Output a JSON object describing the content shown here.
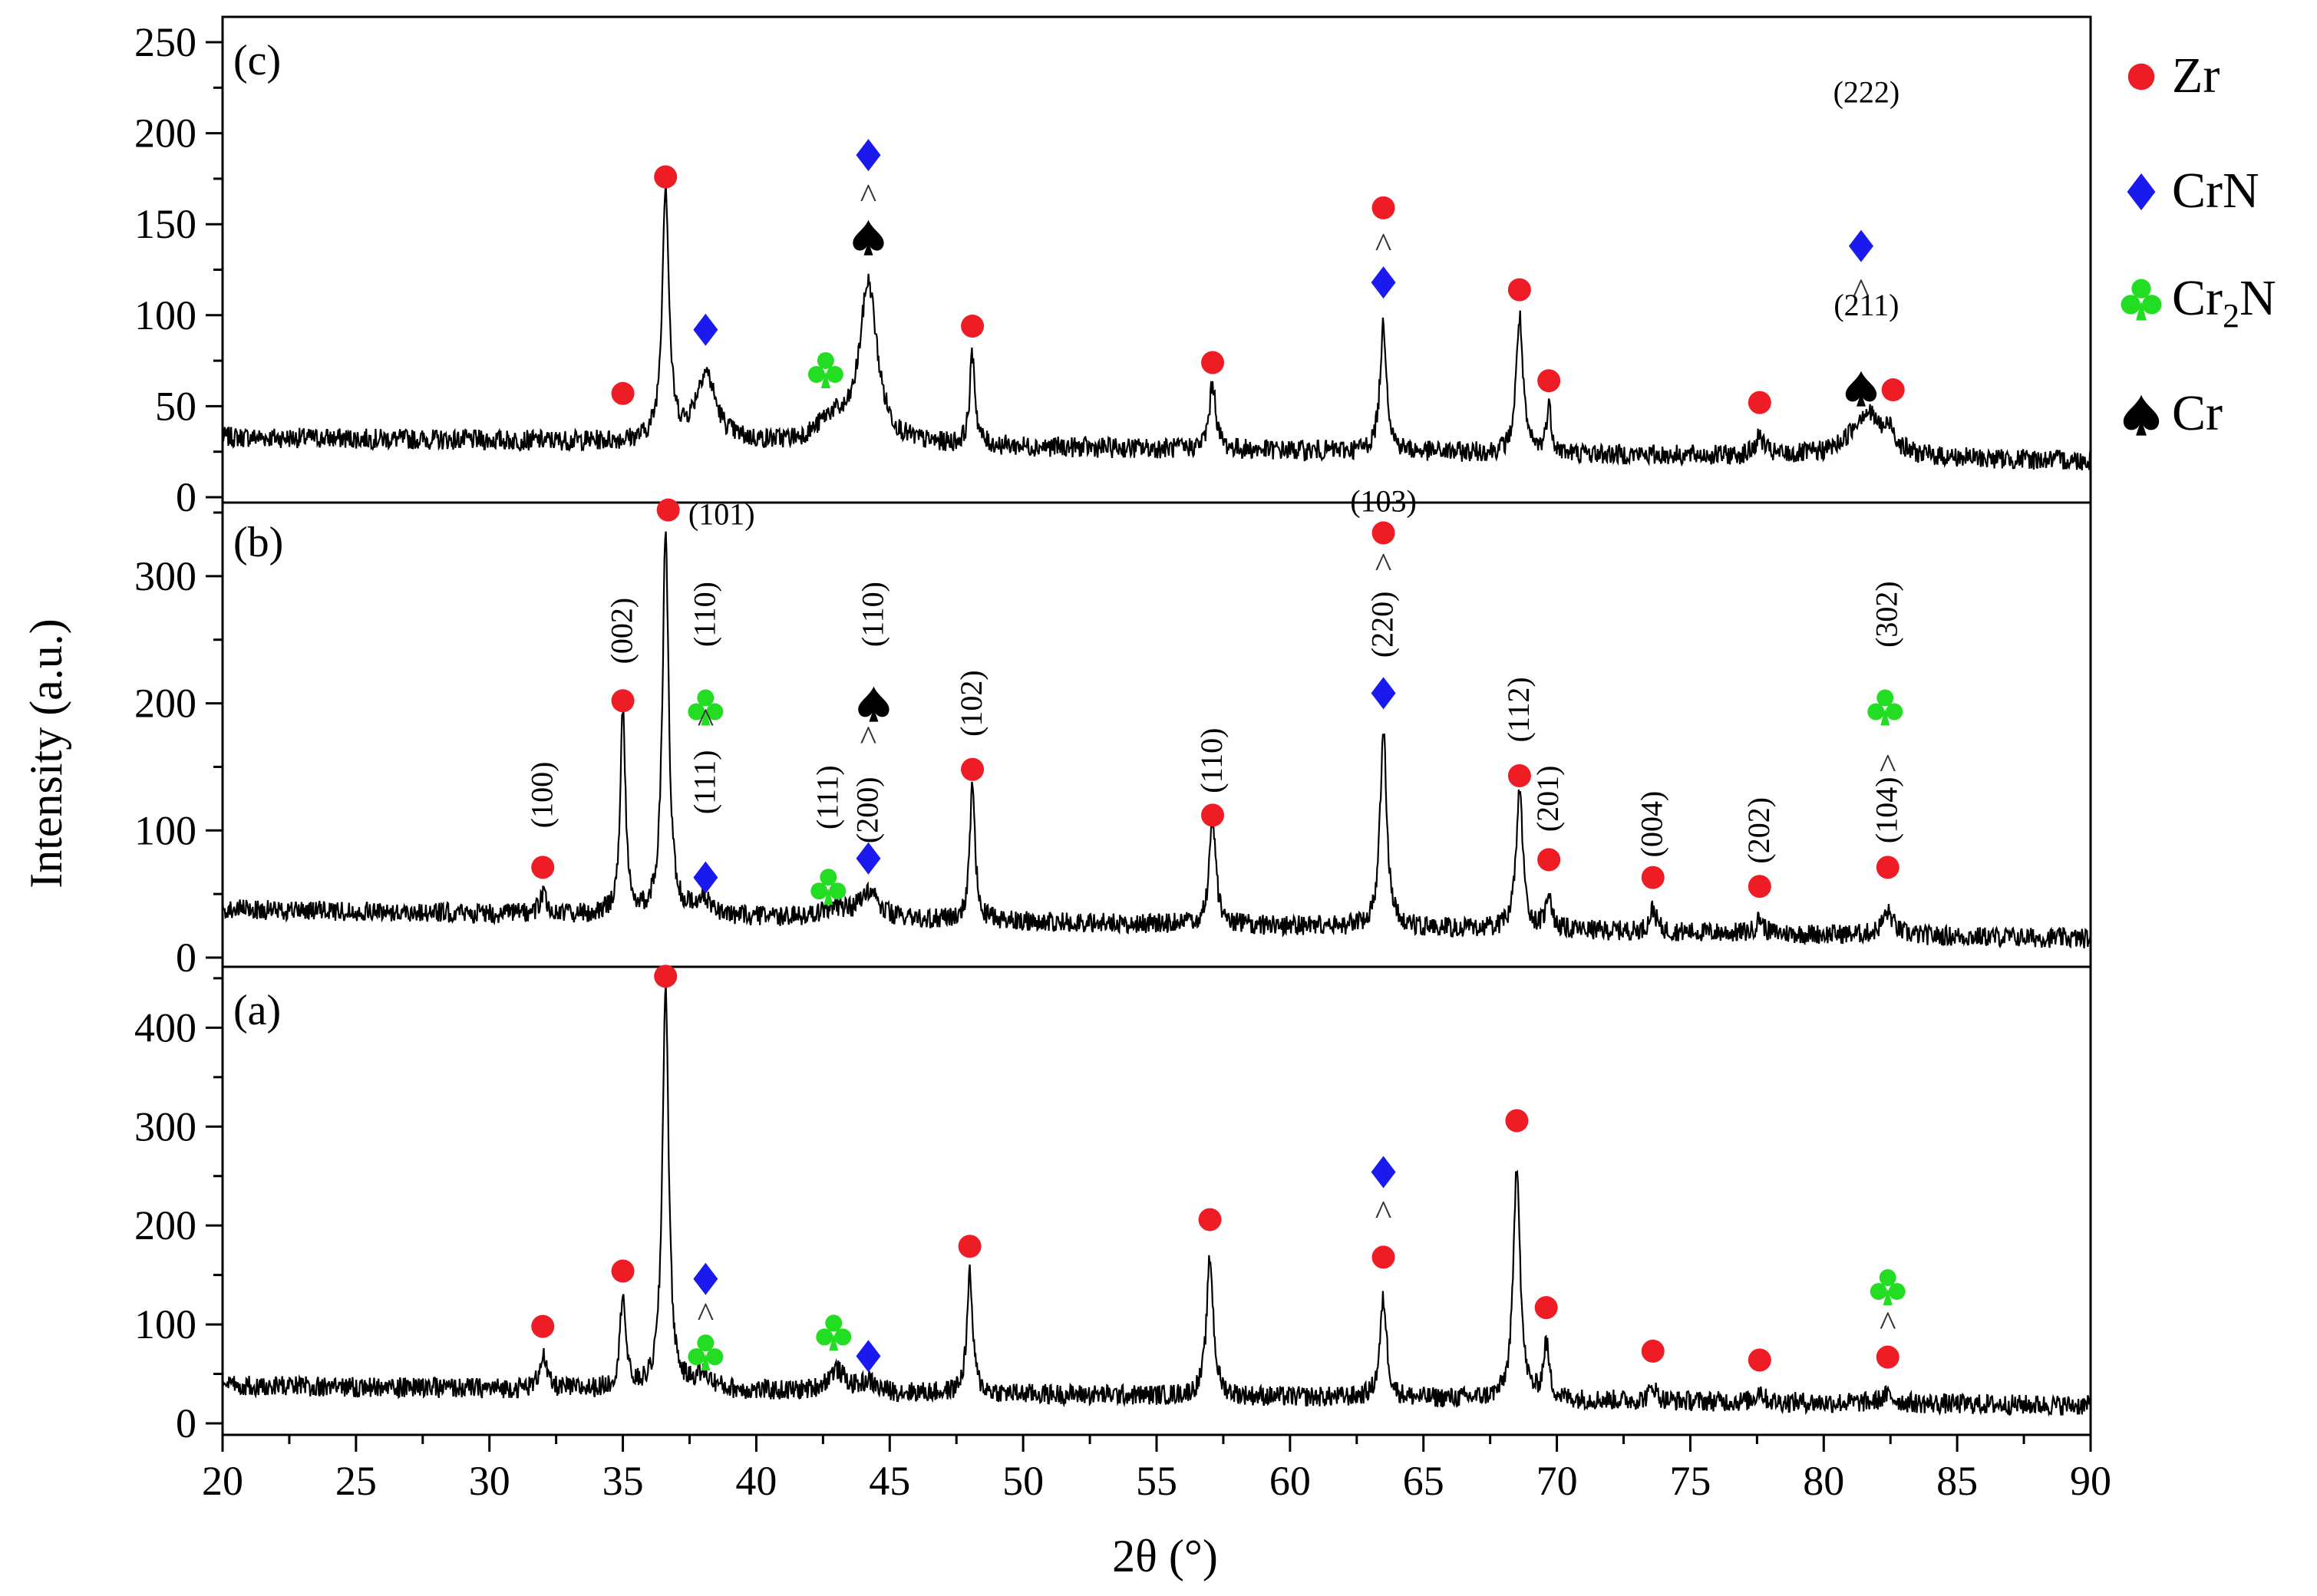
{
  "chart_data": {
    "type": "line",
    "title": "",
    "xlabel": "2θ (°)",
    "ylabel": "Intensity (a.u.)",
    "xlim": [
      20,
      90
    ],
    "xticks": [
      "20",
      "25",
      "30",
      "35",
      "40",
      "45",
      "50",
      "55",
      "60",
      "65",
      "70",
      "75",
      "80",
      "85",
      "90"
    ],
    "panels": [
      {
        "id": "c",
        "label": "(c)",
        "ylim": [
          0,
          250
        ],
        "yticks": [
          "0",
          "50",
          "100",
          "150",
          "200",
          "250"
        ],
        "baseline": {
          "start": 33,
          "end": 20
        },
        "peaks": [
          [
            36.6,
            140,
            0.15
          ],
          [
            38.1,
            38,
            0.45
          ],
          [
            42.8,
            12,
            0.6
          ],
          [
            44.2,
            88,
            0.4
          ],
          [
            48.1,
            50,
            0.12
          ],
          [
            57.1,
            36,
            0.15
          ],
          [
            63.5,
            70,
            0.15
          ],
          [
            68.6,
            75,
            0.15
          ],
          [
            69.7,
            25,
            0.12
          ],
          [
            77.6,
            10,
            0.2
          ],
          [
            81.6,
            25,
            0.7
          ],
          [
            82.5,
            10,
            0.2
          ]
        ],
        "markers": [
          {
            "x": 35.0,
            "y": 57,
            "phase": "Zr"
          },
          {
            "x": 36.6,
            "y": 176,
            "phase": "Zr"
          },
          {
            "x": 38.1,
            "y": 92,
            "phase": "CrN"
          },
          {
            "x": 42.6,
            "y": 70,
            "phase": "Cr2N"
          },
          {
            "x": 44.2,
            "y": 188,
            "phase": "CrN"
          },
          {
            "x": 44.2,
            "y": 143,
            "phase": "Cr"
          },
          {
            "x": 48.1,
            "y": 94,
            "phase": "Zr"
          },
          {
            "x": 57.1,
            "y": 74,
            "phase": "Zr"
          },
          {
            "x": 63.5,
            "y": 159,
            "phase": "Zr"
          },
          {
            "x": 63.5,
            "y": 118,
            "phase": "CrN"
          },
          {
            "x": 68.6,
            "y": 114,
            "phase": "Zr"
          },
          {
            "x": 69.7,
            "y": 64,
            "phase": "Zr"
          },
          {
            "x": 77.6,
            "y": 52,
            "phase": "Zr"
          },
          {
            "x": 81.4,
            "y": 138,
            "phase": "CrN"
          },
          {
            "x": 81.4,
            "y": 60,
            "phase": "Cr"
          },
          {
            "x": 82.6,
            "y": 59,
            "phase": "Zr"
          }
        ],
        "carets": [
          {
            "x": 44.2,
            "y": 165
          },
          {
            "x": 63.5,
            "y": 138
          },
          {
            "x": 81.4,
            "y": 113
          }
        ],
        "hkl": [
          {
            "x": 81.6,
            "y": 222,
            "text": "(222)"
          },
          {
            "x": 81.6,
            "y": 105,
            "text": "(211)"
          }
        ]
      },
      {
        "id": "b",
        "label": "(b)",
        "ylim": [
          0,
          350
        ],
        "yticks": [
          "0",
          "100",
          "200",
          "300"
        ],
        "baseline": {
          "start": 38,
          "end": 15
        },
        "peaks": [
          [
            32.0,
            15,
            0.15
          ],
          [
            35.0,
            160,
            0.12
          ],
          [
            36.6,
            300,
            0.14
          ],
          [
            38.0,
            12,
            0.4
          ],
          [
            42.9,
            8,
            0.5
          ],
          [
            44.2,
            22,
            0.4
          ],
          [
            48.1,
            105,
            0.12
          ],
          [
            57.1,
            80,
            0.15
          ],
          [
            63.5,
            155,
            0.15
          ],
          [
            68.6,
            110,
            0.15
          ],
          [
            69.7,
            30,
            0.12
          ],
          [
            73.6,
            18,
            0.15
          ],
          [
            77.6,
            12,
            0.15
          ],
          [
            82.4,
            18,
            0.25
          ]
        ],
        "markers": [
          {
            "x": 32.0,
            "y": 71,
            "phase": "Zr"
          },
          {
            "x": 35.0,
            "y": 202,
            "phase": "Zr"
          },
          {
            "x": 36.7,
            "y": 352,
            "phase": "Zr"
          },
          {
            "x": 38.1,
            "y": 63,
            "phase": "CrN"
          },
          {
            "x": 38.1,
            "y": 197,
            "phase": "Cr2N"
          },
          {
            "x": 42.7,
            "y": 56,
            "phase": "Cr2N"
          },
          {
            "x": 44.2,
            "y": 78,
            "phase": "CrN"
          },
          {
            "x": 44.4,
            "y": 200,
            "phase": "Cr"
          },
          {
            "x": 48.1,
            "y": 148,
            "phase": "Zr"
          },
          {
            "x": 57.1,
            "y": 112,
            "phase": "Zr"
          },
          {
            "x": 63.5,
            "y": 334,
            "phase": "Zr"
          },
          {
            "x": 63.5,
            "y": 208,
            "phase": "CrN"
          },
          {
            "x": 68.6,
            "y": 143,
            "phase": "Zr"
          },
          {
            "x": 69.7,
            "y": 77,
            "phase": "Zr"
          },
          {
            "x": 73.6,
            "y": 63,
            "phase": "Zr"
          },
          {
            "x": 77.6,
            "y": 56,
            "phase": "Zr"
          },
          {
            "x": 82.3,
            "y": 197,
            "phase": "Cr2N"
          },
          {
            "x": 82.4,
            "y": 71,
            "phase": "Zr"
          }
        ],
        "carets": [
          {
            "x": 63.5,
            "y": 308
          },
          {
            "x": 38.1,
            "y": 186
          },
          {
            "x": 44.2,
            "y": 172
          },
          {
            "x": 82.4,
            "y": 150
          }
        ],
        "hkl": [
          {
            "x": 32.0,
            "y": 128,
            "text": "(100)",
            "rot": true
          },
          {
            "x": 35.0,
            "y": 257,
            "text": "(002)",
            "rot": true
          },
          {
            "x": 38.7,
            "y": 348,
            "text": "(101)",
            "rot": false
          },
          {
            "x": 38.1,
            "y": 270,
            "text": "(110)",
            "rot": true
          },
          {
            "x": 38.1,
            "y": 138,
            "text": "(111)",
            "rot": true
          },
          {
            "x": 42.7,
            "y": 126,
            "text": "(111)",
            "rot": true
          },
          {
            "x": 44.4,
            "y": 270,
            "text": "(110)",
            "rot": true
          },
          {
            "x": 44.2,
            "y": 116,
            "text": "(200)",
            "rot": true
          },
          {
            "x": 48.1,
            "y": 200,
            "text": "(102)",
            "rot": true
          },
          {
            "x": 57.1,
            "y": 155,
            "text": "(110)",
            "rot": true
          },
          {
            "x": 63.5,
            "y": 358,
            "text": "(103)",
            "rot": false
          },
          {
            "x": 63.5,
            "y": 262,
            "text": "(220)",
            "rot": true
          },
          {
            "x": 68.6,
            "y": 195,
            "text": "(112)",
            "rot": true
          },
          {
            "x": 69.7,
            "y": 125,
            "text": "(201)",
            "rot": true
          },
          {
            "x": 73.6,
            "y": 105,
            "text": "(004)",
            "rot": true
          },
          {
            "x": 77.6,
            "y": 100,
            "text": "(202)",
            "rot": true
          },
          {
            "x": 82.4,
            "y": 270,
            "text": "(302)",
            "rot": true
          },
          {
            "x": 82.4,
            "y": 116,
            "text": "(104)",
            "rot": true
          }
        ]
      },
      {
        "id": "a",
        "label": "(a)",
        "ylim": [
          0,
          460
        ],
        "yticks": [
          "0",
          "100",
          "200",
          "300",
          "400"
        ],
        "baseline": {
          "start": 38,
          "end": 18
        },
        "peaks": [
          [
            32.0,
            35,
            0.15
          ],
          [
            35.0,
            100,
            0.12
          ],
          [
            36.6,
            410,
            0.14
          ],
          [
            38.0,
            15,
            0.4
          ],
          [
            43.0,
            22,
            0.4
          ],
          [
            44.2,
            10,
            0.3
          ],
          [
            48.0,
            120,
            0.13
          ],
          [
            57.0,
            140,
            0.15
          ],
          [
            63.5,
            100,
            0.15
          ],
          [
            68.5,
            240,
            0.15
          ],
          [
            69.6,
            55,
            0.13
          ],
          [
            73.6,
            15,
            0.15
          ],
          [
            77.6,
            12,
            0.15
          ],
          [
            82.4,
            8,
            0.3
          ]
        ],
        "markers": [
          {
            "x": 32.0,
            "y": 98,
            "phase": "Zr"
          },
          {
            "x": 35.0,
            "y": 154,
            "phase": "Zr"
          },
          {
            "x": 36.6,
            "y": 452,
            "phase": "Zr"
          },
          {
            "x": 38.1,
            "y": 146,
            "phase": "CrN"
          },
          {
            "x": 38.1,
            "y": 72,
            "phase": "Cr2N"
          },
          {
            "x": 42.9,
            "y": 92,
            "phase": "Cr2N"
          },
          {
            "x": 44.2,
            "y": 68,
            "phase": "CrN"
          },
          {
            "x": 48.0,
            "y": 179,
            "phase": "Zr"
          },
          {
            "x": 57.0,
            "y": 206,
            "phase": "Zr"
          },
          {
            "x": 63.5,
            "y": 254,
            "phase": "CrN"
          },
          {
            "x": 63.5,
            "y": 168,
            "phase": "Zr"
          },
          {
            "x": 68.5,
            "y": 306,
            "phase": "Zr"
          },
          {
            "x": 69.6,
            "y": 117,
            "phase": "Zr"
          },
          {
            "x": 73.6,
            "y": 73,
            "phase": "Zr"
          },
          {
            "x": 77.6,
            "y": 64,
            "phase": "Zr"
          },
          {
            "x": 82.4,
            "y": 138,
            "phase": "Cr2N"
          },
          {
            "x": 82.4,
            "y": 67,
            "phase": "Zr"
          }
        ],
        "carets": [
          {
            "x": 38.1,
            "y": 109
          },
          {
            "x": 63.5,
            "y": 212
          },
          {
            "x": 82.4,
            "y": 100
          }
        ],
        "hkl": []
      }
    ],
    "legend": {
      "placement": "right",
      "entries": [
        {
          "phase": "Zr",
          "label": "Zr",
          "sub": ""
        },
        {
          "phase": "CrN",
          "label": "CrN",
          "sub": ""
        },
        {
          "phase": "Cr2N",
          "label": "Cr",
          "sub": "2",
          "suffix": "N"
        },
        {
          "phase": "Cr",
          "label": "Cr",
          "sub": ""
        }
      ]
    },
    "colors": {
      "Zr": "#ee1c25",
      "CrN": "#1a1aee",
      "Cr2N": "#22dd22",
      "Cr": "#000000",
      "line": "#000000"
    }
  }
}
